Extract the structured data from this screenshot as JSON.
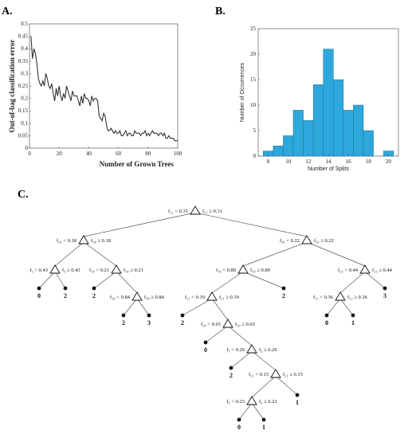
{
  "panels": {
    "a": "A.",
    "b": "B.",
    "c": "C."
  },
  "chart_data": [
    {
      "type": "line",
      "ylabel": "Out-of-bag classification error",
      "xlabel": "Number of Grown Trees",
      "xlim": [
        0,
        100
      ],
      "ylim": [
        0,
        0.5
      ],
      "xticks": [
        "0",
        "20",
        "40",
        "60",
        "80",
        "100"
      ],
      "yticks": [
        "0",
        "0.05",
        "0.1",
        "0.15",
        "0.2",
        "0.25",
        "0.3",
        "0.35",
        "0.4",
        "0.45",
        "0.5"
      ],
      "x": [
        1,
        2,
        3,
        4,
        5,
        6,
        7,
        8,
        9,
        10,
        11,
        12,
        13,
        14,
        15,
        16,
        17,
        18,
        19,
        20,
        21,
        22,
        23,
        24,
        25,
        26,
        27,
        28,
        29,
        30,
        31,
        32,
        33,
        34,
        35,
        36,
        37,
        38,
        39,
        40,
        41,
        42,
        43,
        44,
        45,
        46,
        47,
        48,
        49,
        50,
        51,
        52,
        53,
        54,
        55,
        56,
        57,
        58,
        59,
        60,
        61,
        62,
        63,
        64,
        65,
        66,
        67,
        68,
        69,
        70,
        71,
        72,
        73,
        74,
        75,
        76,
        77,
        78,
        79,
        80,
        81,
        82,
        83,
        84,
        85,
        86,
        87,
        88,
        89,
        90,
        91,
        92,
        93,
        94,
        95,
        96,
        97,
        98,
        99,
        100
      ],
      "values": [
        0.45,
        0.36,
        0.4,
        0.38,
        0.34,
        0.28,
        0.26,
        0.25,
        0.27,
        0.25,
        0.3,
        0.28,
        0.25,
        0.24,
        0.26,
        0.22,
        0.19,
        0.24,
        0.21,
        0.25,
        0.21,
        0.19,
        0.22,
        0.2,
        0.25,
        0.23,
        0.21,
        0.19,
        0.23,
        0.21,
        0.21,
        0.21,
        0.19,
        0.17,
        0.21,
        0.18,
        0.22,
        0.2,
        0.2,
        0.19,
        0.17,
        0.21,
        0.19,
        0.2,
        0.2,
        0.19,
        0.13,
        0.12,
        0.11,
        0.14,
        0.13,
        0.09,
        0.07,
        0.07,
        0.08,
        0.07,
        0.06,
        0.07,
        0.06,
        0.06,
        0.07,
        0.05,
        0.05,
        0.06,
        0.07,
        0.05,
        0.06,
        0.06,
        0.05,
        0.05,
        0.07,
        0.06,
        0.06,
        0.06,
        0.05,
        0.06,
        0.06,
        0.07,
        0.05,
        0.06,
        0.05,
        0.06,
        0.07,
        0.06,
        0.06,
        0.06,
        0.05,
        0.06,
        0.06,
        0.05,
        0.06,
        0.04,
        0.04,
        0.05,
        0.04,
        0.04,
        0.04,
        0.03,
        0.03,
        0.03
      ]
    },
    {
      "type": "bar",
      "ylabel": "Number of Occurrences",
      "xlabel": "Number of Splits",
      "xlim": [
        7,
        21
      ],
      "ylim": [
        0,
        25
      ],
      "xticks": [
        "8",
        "10",
        "12",
        "14",
        "16",
        "18",
        "20"
      ],
      "yticks": [
        "0",
        "5",
        "10",
        "15",
        "20",
        "25"
      ],
      "categories": [
        "8",
        "9",
        "10",
        "11",
        "12",
        "13",
        "14",
        "15",
        "16",
        "17",
        "18",
        "19",
        "20"
      ],
      "values": [
        1,
        2,
        4,
        9,
        7,
        14,
        21,
        15,
        9,
        10,
        5,
        0,
        1
      ],
      "color": "#2ea8dc"
    }
  ],
  "tree": {
    "root": {
      "left": "f₂₁ < 0.31",
      "right": "f₂₁ ≥ 0.31"
    },
    "n1": {
      "left": "f₂₄ < 0.18",
      "right": "f₂₄ ≥ 0.18"
    },
    "n2": {
      "left": "f₁₆ < 0.22",
      "right": "f₁₆ ≥ 0.22"
    },
    "n3": {
      "left": "f₃ < 0.43",
      "right": "f₃ ≥ 0.43"
    },
    "n4": {
      "left": "f₁₄ < 0.21",
      "right": "f₁₄ ≥ 0.21"
    },
    "n5": {
      "left": "f₁₀ < 0.80",
      "right": "f₁₀ ≥ 0.80"
    },
    "n6": {
      "left": "f₂₃ < 0.44",
      "right": "f₂₃ ≥ 0.44"
    },
    "n7": {
      "left": "f₁₀ < 0.84",
      "right": "f₁₀ ≥ 0.84"
    },
    "n8": {
      "left": "f₂₁ < 0.19",
      "right": "f₂₁ ≥ 0.19"
    },
    "n9": {
      "left": "f₁₂ < 0.36",
      "right": "f₁₂ ≥ 0.36"
    },
    "n10": {
      "left": "f₁₉ < 0.65",
      "right": "f₁₉ ≥ 0.65"
    },
    "n11": {
      "left": "f₃ < 0.26",
      "right": "f₃ ≥ 0.26"
    },
    "n12": {
      "left": "f₂₁ < 0.15",
      "right": "f₂₁ ≥ 0.15"
    },
    "n13": {
      "left": "f₆ < 0.23",
      "right": "f₆ ≥ 0.23"
    },
    "leaves": {
      "l3a": "0",
      "l3b": "2",
      "l4a": "2",
      "l7a": "2",
      "l7b": "3",
      "l5b": "2",
      "l8a": "2",
      "l6b": "3",
      "l9a": "0",
      "l9b": "1",
      "l10a": "0",
      "l11a": "2",
      "l12b": "1",
      "l13a": "0",
      "l13b": "1"
    }
  }
}
